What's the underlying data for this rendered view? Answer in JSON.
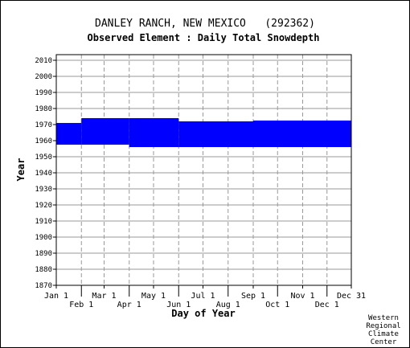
{
  "chart_data": {
    "type": "coverage",
    "title": "DANLEY RANCH, NEW MEXICO   (292362)",
    "subtitle": "Observed Element : Daily Total Snowdepth",
    "xlabel": "Day of Year",
    "ylabel": "Year",
    "credit": [
      "Western",
      "Regional",
      "Climate",
      "Center"
    ],
    "color": "#0000ff",
    "grid": true,
    "xlim": [
      1,
      365
    ],
    "ylim": [
      1870,
      2013.5
    ],
    "xticks": [
      {
        "value": 1,
        "label": "Jan 1"
      },
      {
        "value": 32,
        "label": "Feb 1"
      },
      {
        "value": 60,
        "label": "Mar 1"
      },
      {
        "value": 91,
        "label": "Apr 1"
      },
      {
        "value": 121,
        "label": "May 1"
      },
      {
        "value": 152,
        "label": "Jun 1"
      },
      {
        "value": 182,
        "label": "Jul 1"
      },
      {
        "value": 213,
        "label": "Aug 1"
      },
      {
        "value": 244,
        "label": "Sep 1"
      },
      {
        "value": 274,
        "label": "Oct 1"
      },
      {
        "value": 305,
        "label": "Nov 1"
      },
      {
        "value": 335,
        "label": "Dec 1"
      },
      {
        "value": 365,
        "label": "Dec 31"
      }
    ],
    "yticks": [
      1870,
      1880,
      1890,
      1900,
      1910,
      1920,
      1930,
      1940,
      1950,
      1960,
      1970,
      1980,
      1990,
      2000,
      2010
    ],
    "blocks": [
      {
        "x": [
          1,
          32
        ],
        "y": [
          1957.5,
          1971
        ]
      },
      {
        "x": [
          32,
          91
        ],
        "y": [
          1957.5,
          1974
        ]
      },
      {
        "x": [
          91,
          152
        ],
        "y": [
          1956,
          1974
        ]
      },
      {
        "x": [
          152,
          244
        ],
        "y": [
          1956,
          1972
        ]
      },
      {
        "x": [
          244,
          365
        ],
        "y": [
          1956,
          1972.5
        ]
      }
    ]
  }
}
